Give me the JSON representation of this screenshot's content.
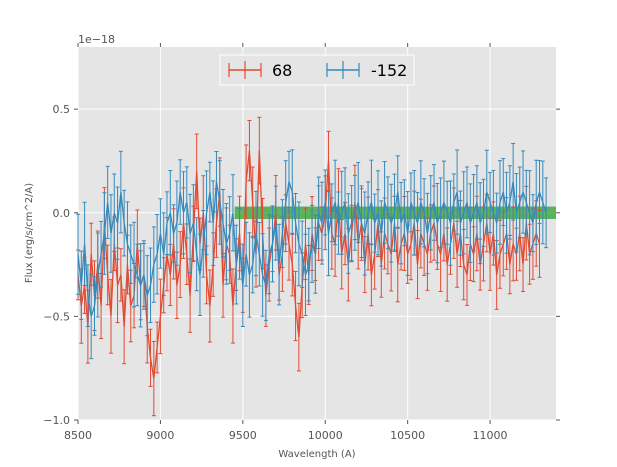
{
  "chart_data": {
    "type": "line",
    "xlabel": "Wavelength (A)",
    "ylabel": "Flux (erg/s/cm^2/A)",
    "offset_label": "1e−18",
    "xlim": [
      8500,
      11400
    ],
    "ylim": [
      -1.0,
      0.8
    ],
    "x_ticks": [
      8500,
      9000,
      9500,
      10000,
      10500,
      11000
    ],
    "x_tick_labels": [
      "8500",
      "9000",
      "9500",
      "10000",
      "10500",
      "11000"
    ],
    "y_ticks": [
      -1.0,
      -0.5,
      0.0,
      0.5
    ],
    "y_tick_labels": [
      "−1.0",
      "−0.5",
      "0.0",
      "0.5"
    ],
    "grid": true,
    "legend_position": "top-center",
    "band": {
      "x_start": 9450,
      "x_end": 11400,
      "y_low": -0.03,
      "y_high": 0.03,
      "color": "#2ca02c"
    },
    "series": [
      {
        "name": "68",
        "color": "#e24a33",
        "start": 8500,
        "step": 20,
        "values": [
          -0.3,
          -0.45,
          -0.35,
          -0.55,
          -0.2,
          -0.4,
          -0.25,
          -0.45,
          -0.05,
          -0.3,
          -0.5,
          -0.15,
          -0.35,
          -0.3,
          -0.55,
          -0.25,
          -0.45,
          -0.4,
          -0.15,
          -0.35,
          -0.3,
          -0.55,
          -0.7,
          -0.8,
          -0.65,
          -0.5,
          -0.35,
          -0.2,
          -0.3,
          -0.15,
          -0.35,
          -0.25,
          -0.05,
          -0.2,
          -0.4,
          -0.1,
          0.2,
          -0.15,
          0.0,
          -0.3,
          -0.45,
          -0.25,
          -0.05,
          0.1,
          -0.35,
          -0.15,
          -0.2,
          -0.45,
          -0.25,
          -0.1,
          -0.35,
          0.15,
          0.3,
          0.05,
          -0.2,
          0.3,
          -0.1,
          -0.4,
          -0.25,
          -0.15,
          0.0,
          -0.3,
          -0.2,
          -0.05,
          -0.15,
          -0.25,
          -0.45,
          -0.6,
          -0.35,
          -0.15,
          -0.3,
          -0.1,
          -0.2,
          -0.05,
          -0.1,
          0.0,
          0.25,
          -0.1,
          -0.15,
          0.05,
          -0.2,
          -0.1,
          -0.25,
          -0.1,
          0.05,
          -0.15,
          -0.05,
          -0.25,
          -0.1,
          -0.3,
          -0.2,
          -0.05,
          -0.25,
          -0.1,
          -0.15,
          -0.2,
          -0.05,
          -0.25,
          -0.15,
          -0.1,
          -0.2,
          -0.15,
          -0.05,
          -0.25,
          -0.1,
          -0.15,
          -0.2,
          -0.1,
          -0.05,
          -0.15,
          -0.2,
          -0.1,
          -0.25,
          -0.15,
          -0.05,
          -0.2,
          -0.1,
          -0.25,
          -0.3,
          -0.15,
          -0.2,
          -0.1,
          -0.25,
          -0.15,
          -0.05,
          -0.2,
          -0.1,
          -0.3,
          -0.2,
          -0.15,
          -0.1,
          -0.25,
          -0.15,
          -0.2,
          -0.1,
          -0.25,
          -0.05,
          -0.2,
          -0.15,
          -0.1,
          -0.15
        ],
        "err": 0.15
      },
      {
        "name": "-152",
        "color": "#348abd",
        "start": 8500,
        "step": 20,
        "values": [
          -0.2,
          -0.35,
          -0.15,
          -0.4,
          -0.5,
          -0.45,
          -0.3,
          -0.2,
          -0.1,
          0.05,
          -0.1,
          0.0,
          -0.05,
          0.1,
          -0.05,
          -0.15,
          -0.2,
          -0.25,
          -0.3,
          -0.35,
          -0.3,
          -0.4,
          -0.35,
          -0.25,
          -0.2,
          -0.1,
          -0.2,
          -0.05,
          0.0,
          -0.1,
          -0.05,
          0.1,
          0.0,
          0.05,
          -0.1,
          -0.05,
          -0.2,
          -0.3,
          -0.15,
          0.0,
          0.1,
          -0.05,
          0.15,
          0.05,
          -0.05,
          -0.15,
          -0.1,
          0.0,
          -0.25,
          -0.15,
          -0.35,
          -0.2,
          -0.3,
          -0.25,
          -0.1,
          -0.2,
          -0.3,
          -0.35,
          -0.2,
          -0.15,
          -0.05,
          -0.25,
          -0.1,
          0.05,
          0.15,
          0.1,
          -0.05,
          -0.15,
          -0.2,
          -0.3,
          -0.25,
          -0.15,
          -0.2,
          0.0,
          -0.05,
          0.05,
          -0.1,
          0.0,
          0.05,
          -0.05,
          0.0,
          0.05,
          -0.1,
          -0.05,
          0.0,
          0.05,
          -0.05,
          -0.1,
          0.0,
          0.05,
          -0.05,
          0.0,
          -0.1,
          0.05,
          0.0,
          -0.05,
          0.0,
          0.1,
          -0.05,
          0.0,
          -0.1,
          0.05,
          0.0,
          -0.05,
          0.05,
          0.0,
          -0.1,
          0.0,
          0.05,
          -0.05,
          0.0,
          0.05,
          0.0,
          -0.05,
          0.05,
          0.1,
          -0.05,
          0.0,
          0.05,
          -0.05,
          0.0,
          0.05,
          -0.05,
          0.0,
          0.1,
          0.05,
          0.0,
          -0.05,
          0.05,
          0.1,
          0.0,
          0.05,
          0.15,
          0.0,
          0.05,
          0.1,
          0.05,
          0.0,
          -0.05,
          0.05,
          0.1,
          0.05,
          0.0
        ],
        "err": 0.17
      }
    ]
  }
}
